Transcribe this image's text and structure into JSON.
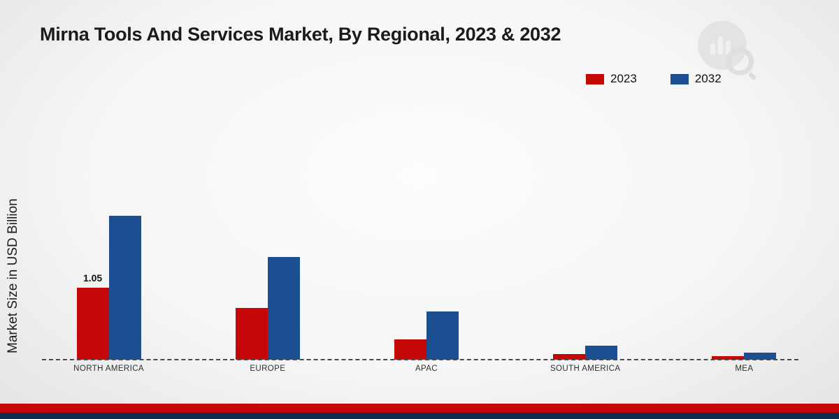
{
  "title": "Mirna Tools And Services Market, By Regional, 2023 & 2032",
  "y_axis_label": "Market Size in USD Billion",
  "legend": {
    "items": [
      {
        "label": "2023",
        "color": "#c40808"
      },
      {
        "label": "2032",
        "color": "#1c4f91"
      }
    ]
  },
  "chart_data": {
    "type": "bar",
    "title": "Mirna Tools And Services Market, By Regional, 2023 & 2032",
    "xlabel": "",
    "ylabel": "Market Size in USD Billion",
    "categories": [
      "NORTH AMERICA",
      "EUROPE",
      "APAC",
      "SOUTH AMERICA",
      "MEA"
    ],
    "series": [
      {
        "name": "2023",
        "color": "#c40808",
        "values": [
          1.05,
          0.75,
          0.3,
          0.08,
          0.05
        ]
      },
      {
        "name": "2032",
        "color": "#1c4f91",
        "values": [
          2.1,
          1.5,
          0.7,
          0.2,
          0.1
        ]
      }
    ],
    "data_labels": [
      {
        "series": "2023",
        "category": "NORTH AMERICA",
        "value": "1.05"
      }
    ],
    "ylim": [
      0,
      2.5
    ],
    "grid": false,
    "legend_position": "top-right",
    "baseline_style": "dashed",
    "y_axis_ticks_visible": false
  },
  "footer": {
    "stripe_colors": [
      "#c40808",
      "#0f2c50"
    ]
  }
}
